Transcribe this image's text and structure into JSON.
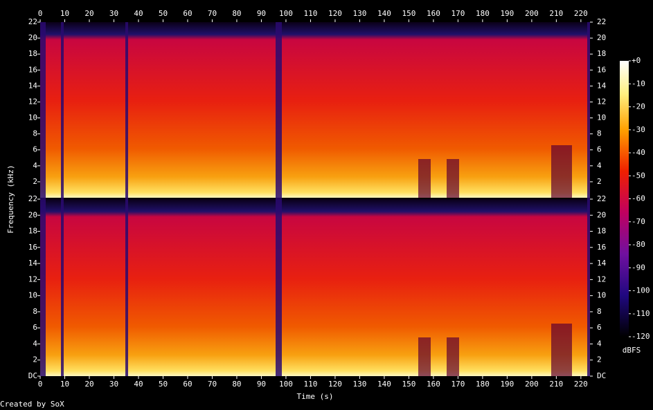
{
  "chart_data": {
    "type": "spectrogram",
    "x_label": "Time (s)",
    "y_label": "Frequency (kHz)",
    "xlim": [
      0,
      223.7
    ],
    "xticks": [
      0,
      10,
      20,
      30,
      40,
      50,
      60,
      70,
      80,
      90,
      100,
      110,
      120,
      130,
      140,
      150,
      160,
      170,
      180,
      190,
      200,
      210,
      220
    ],
    "panels": [
      {
        "ylim": [
          0,
          22
        ],
        "yticks": [
          2,
          4,
          6,
          8,
          10,
          12,
          14,
          16,
          18,
          20,
          22
        ]
      },
      {
        "ylim": [
          0,
          22
        ],
        "yticks": [
          {
            "value": 0,
            "label": "DC"
          },
          2,
          4,
          6,
          8,
          10,
          12,
          14,
          16,
          18,
          20,
          22
        ]
      }
    ],
    "colorbar": {
      "label": "dBFS",
      "lim": [
        -120,
        0
      ],
      "ticks": [
        {
          "value": 0,
          "label": "+0"
        },
        -10,
        -20,
        -30,
        -40,
        -50,
        -60,
        -70,
        -80,
        -90,
        -100,
        -110,
        -120
      ]
    },
    "credit": "Created by SoX"
  }
}
